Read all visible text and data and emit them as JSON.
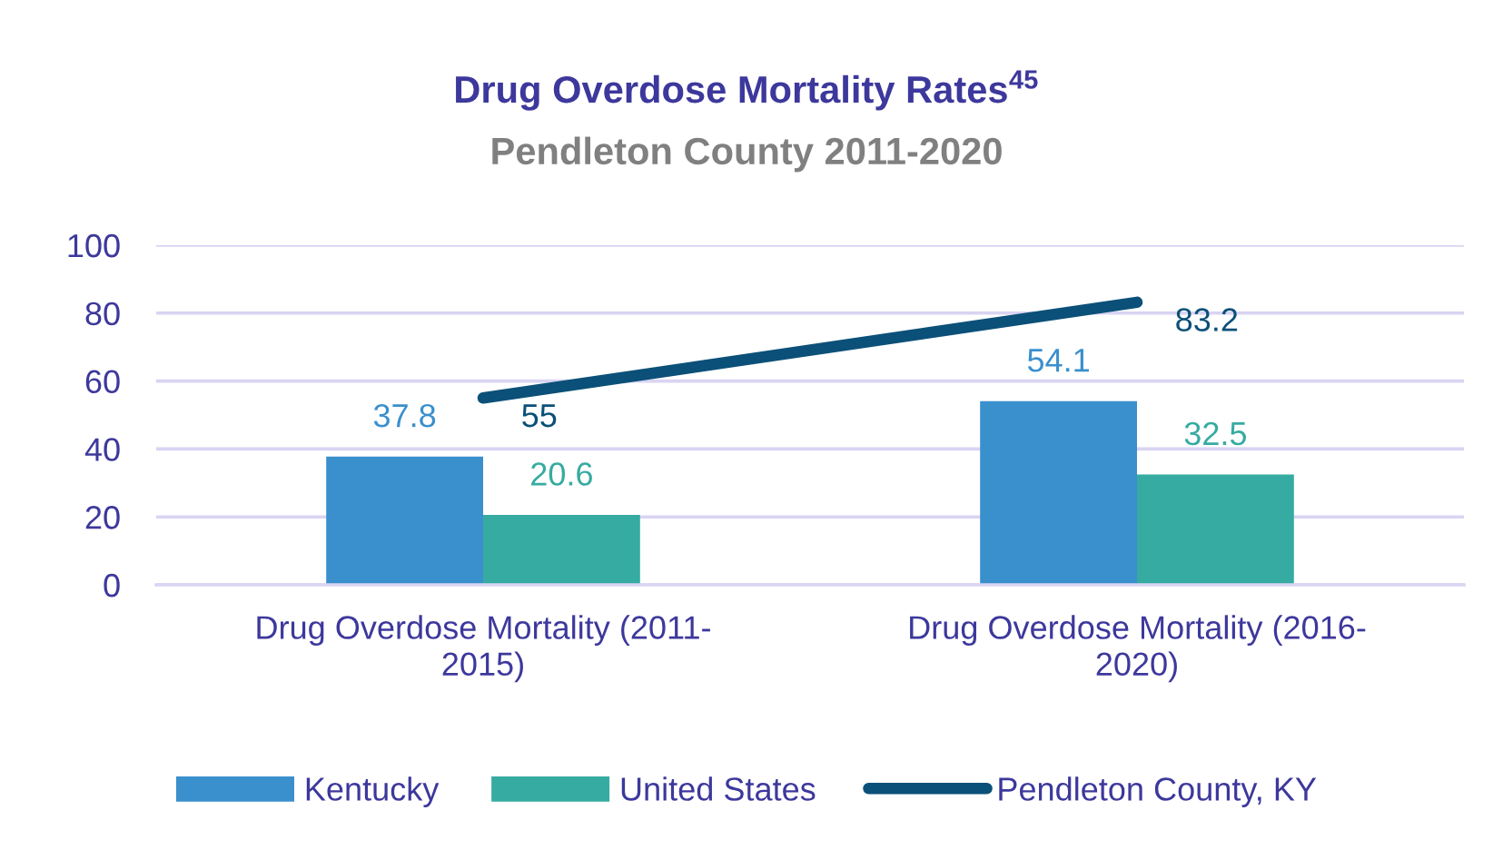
{
  "chart_data": {
    "type": "bar",
    "title": "Drug Overdose Mortality Rates$^{45}$",
    "subtitle": "Pendleton County 2011-2020",
    "categories": [
      "Drug Overdose Mortality (2011-2015)",
      "Drug Overdose Mortality (2016-2020)"
    ],
    "series": [
      {
        "name": "Kentucky",
        "color": "#3a8fcd",
        "values": [
          37.8,
          54.1
        ]
      },
      {
        "name": "United States",
        "color": "#36aba1",
        "values": [
          20.6,
          32.5
        ]
      },
      {
        "name": "Pendleton County, KY",
        "type": "line",
        "color": "#0b5078",
        "values": [
          55,
          83.2
        ]
      }
    ],
    "ylim": [
      0,
      100
    ],
    "yticks": [
      0,
      20,
      40,
      60,
      80,
      100
    ],
    "grid": "y",
    "legend": "bottom",
    "data_labels": true
  }
}
